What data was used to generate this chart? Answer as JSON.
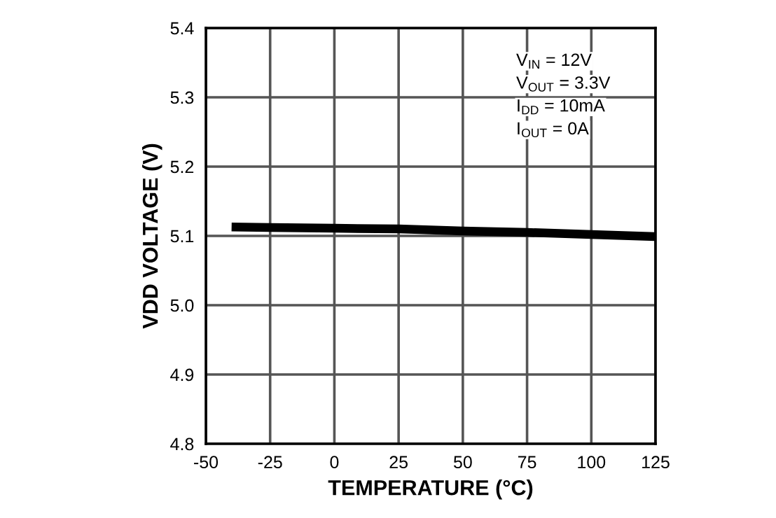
{
  "chart_data": {
    "type": "line",
    "xlabel": "TEMPERATURE (°C)",
    "ylabel": "VDD VOLTAGE (V)",
    "annotations": [
      "V$_{IN}$ = 12V",
      "V$_{OUT}$ = 3.3V",
      "I$_{DD}$ = 10mA",
      "I$_{OUT}$ = 0A"
    ],
    "series": [
      {
        "color": "#000000",
        "x": [
          -40,
          -25,
          0,
          25,
          50,
          75,
          100,
          125
        ],
        "values": [
          5.113,
          5.112,
          5.111,
          5.11,
          5.107,
          5.105,
          5.102,
          5.099
        ]
      }
    ],
    "xlim": [
      -50,
      125
    ],
    "xticks": [
      -50,
      -25,
      0,
      25,
      50,
      75,
      100,
      125
    ],
    "ylim": [
      4.8,
      5.4
    ],
    "yticks": [
      4.8,
      4.9,
      {
        "value": 5.0,
        "label": "5.0"
      },
      5.1,
      5.2,
      5.3,
      5.4
    ],
    "grid": true,
    "legend": false,
    "marker": "none",
    "line_style": "solid"
  }
}
